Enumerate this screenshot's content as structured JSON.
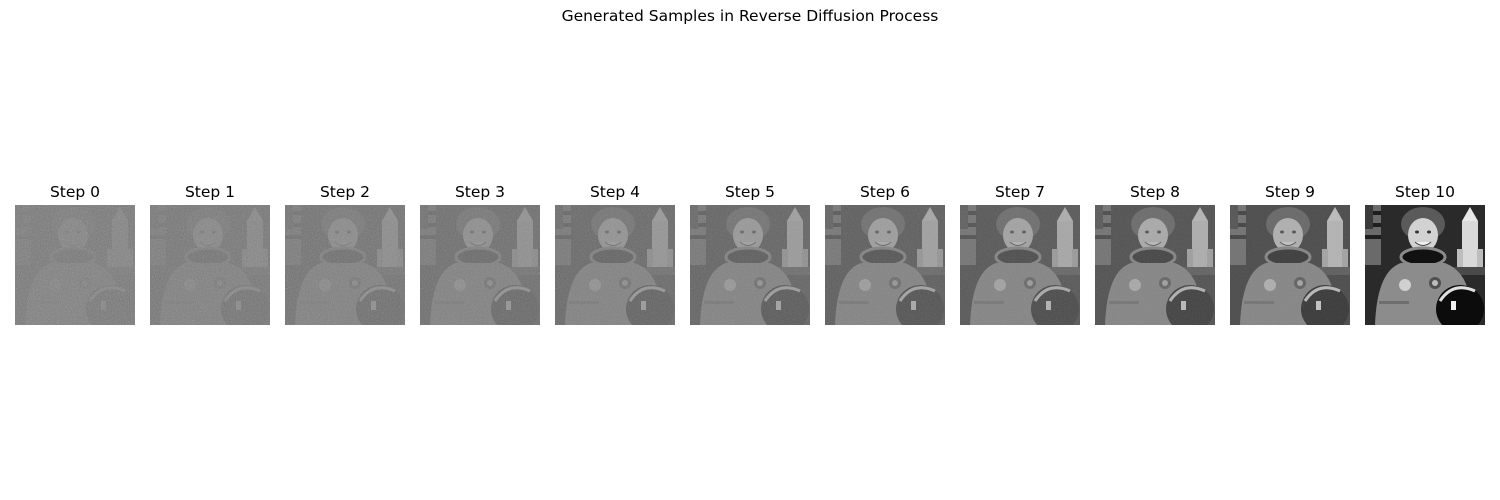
{
  "figure": {
    "title": "Generated Samples in Reverse Diffusion Process",
    "panels": [
      {
        "label": "Step 0",
        "step": 0,
        "denoise_fraction": 0.0
      },
      {
        "label": "Step 1",
        "step": 1,
        "denoise_fraction": 0.1
      },
      {
        "label": "Step 2",
        "step": 2,
        "denoise_fraction": 0.2
      },
      {
        "label": "Step 3",
        "step": 3,
        "denoise_fraction": 0.3
      },
      {
        "label": "Step 4",
        "step": 4,
        "denoise_fraction": 0.4
      },
      {
        "label": "Step 5",
        "step": 5,
        "denoise_fraction": 0.5
      },
      {
        "label": "Step 6",
        "step": 6,
        "denoise_fraction": 0.6
      },
      {
        "label": "Step 7",
        "step": 7,
        "denoise_fraction": 0.7
      },
      {
        "label": "Step 8",
        "step": 8,
        "denoise_fraction": 0.8
      },
      {
        "label": "Step 9",
        "step": 9,
        "denoise_fraction": 0.9
      },
      {
        "label": "Step 10",
        "step": 10,
        "denoise_fraction": 1.0
      }
    ],
    "colormap": "gray",
    "subject": "astronaut-portrait"
  }
}
